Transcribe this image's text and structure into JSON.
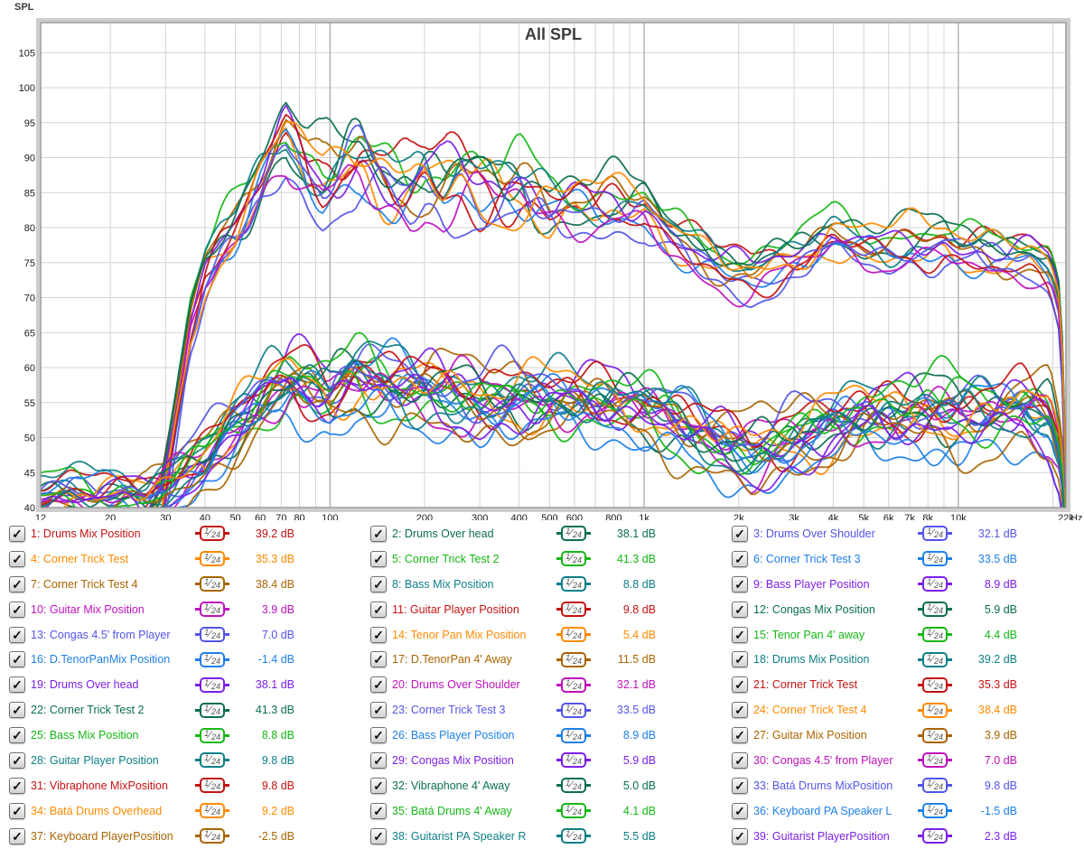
{
  "chart_data": {
    "type": "line",
    "title": "All SPL",
    "ylabel": "SPL",
    "x_unit": "Hz",
    "x_scale": "log",
    "xlim": [
      12,
      22000
    ],
    "ylim": [
      40,
      109.3
    ],
    "grid": true,
    "y_ticks": [
      105,
      100,
      95,
      90,
      85,
      80,
      75,
      70,
      65,
      60,
      55,
      50,
      45,
      40
    ],
    "x_ticks": [
      {
        "f": 12,
        "label": "12"
      },
      {
        "f": 20,
        "label": "20"
      },
      {
        "f": 30,
        "label": "30"
      },
      {
        "f": 40,
        "label": "40"
      },
      {
        "f": 50,
        "label": "50"
      },
      {
        "f": 60,
        "label": "60"
      },
      {
        "f": 70,
        "label": "70"
      },
      {
        "f": 80,
        "label": "80"
      },
      {
        "f": 100,
        "label": "100"
      },
      {
        "f": 200,
        "label": "200"
      },
      {
        "f": 300,
        "label": "300"
      },
      {
        "f": 400,
        "label": "400"
      },
      {
        "f": 500,
        "label": "500"
      },
      {
        "f": 600,
        "label": "600"
      },
      {
        "f": 800,
        "label": "800"
      },
      {
        "f": 1000,
        "label": "1k"
      },
      {
        "f": 2000,
        "label": "2k"
      },
      {
        "f": 3000,
        "label": "3k"
      },
      {
        "f": 4000,
        "label": "4k"
      },
      {
        "f": 5000,
        "label": "5k"
      },
      {
        "f": 6000,
        "label": "6k"
      },
      {
        "f": 7000,
        "label": "7k"
      },
      {
        "f": 8000,
        "label": "8k"
      },
      {
        "f": 10000,
        "label": "10k"
      },
      {
        "f": 22000,
        "label": "22k"
      }
    ],
    "minor_gridlines": [
      20,
      30,
      40,
      50,
      60,
      70,
      80,
      90,
      200,
      300,
      400,
      500,
      600,
      700,
      800,
      900,
      2000,
      3000,
      4000,
      5000,
      6000,
      7000,
      8000,
      9000,
      20000
    ],
    "major_gridlines": [
      100,
      1000,
      10000
    ],
    "palette": [
      "#C41212",
      "#0B6E50",
      "#5355E8",
      "#FF8A00",
      "#16B716",
      "#1E80E8",
      "#A96400",
      "#0E7F87",
      "#7C1FE8",
      "#BE12BE"
    ],
    "group_profiles": {
      "high": {
        "anchors": [
          [
            12,
            36
          ],
          [
            20,
            36
          ],
          [
            26,
            37
          ],
          [
            29,
            40
          ],
          [
            32,
            52
          ],
          [
            36,
            66
          ],
          [
            40,
            73
          ],
          [
            45,
            77
          ],
          [
            50,
            79
          ],
          [
            55,
            82
          ],
          [
            60,
            86
          ],
          [
            66,
            90
          ],
          [
            72,
            93
          ],
          [
            78,
            91
          ],
          [
            85,
            88.5
          ],
          [
            95,
            87
          ],
          [
            105,
            88.5
          ],
          [
            115,
            91
          ],
          [
            125,
            92
          ],
          [
            140,
            89.5
          ],
          [
            160,
            87
          ],
          [
            180,
            86.5
          ],
          [
            200,
            88
          ],
          [
            230,
            86
          ],
          [
            260,
            87
          ],
          [
            300,
            85
          ],
          [
            350,
            84
          ],
          [
            400,
            84.5
          ],
          [
            450,
            83
          ],
          [
            500,
            82
          ],
          [
            600,
            83
          ],
          [
            700,
            83
          ],
          [
            800,
            84
          ],
          [
            900,
            83.5
          ],
          [
            1000,
            84
          ],
          [
            1200,
            80
          ],
          [
            1500,
            77
          ],
          [
            1800,
            74.5
          ],
          [
            2200,
            73
          ],
          [
            2700,
            74.5
          ],
          [
            3300,
            76
          ],
          [
            4000,
            78.5
          ],
          [
            5000,
            77
          ],
          [
            6000,
            77
          ],
          [
            7000,
            78
          ],
          [
            8000,
            78
          ],
          [
            9000,
            79
          ],
          [
            10000,
            78
          ],
          [
            12000,
            77.5
          ],
          [
            14000,
            76.5
          ],
          [
            17000,
            76
          ],
          [
            19500,
            74
          ],
          [
            20800,
            70
          ],
          [
            21500,
            60
          ],
          [
            22000,
            42
          ]
        ],
        "spread_amp": [
          [
            12,
            1.0
          ],
          [
            28,
            1.2
          ],
          [
            50,
            1.8
          ],
          [
            80,
            2.4
          ],
          [
            120,
            2.8
          ],
          [
            400,
            2.8
          ],
          [
            700,
            1.9
          ],
          [
            1000,
            1.5
          ],
          [
            3000,
            1.4
          ],
          [
            10000,
            1.5
          ],
          [
            20000,
            1.3
          ],
          [
            22000,
            0.8
          ]
        ]
      },
      "low": {
        "anchors": [
          [
            12,
            40.5
          ],
          [
            15,
            41.5
          ],
          [
            18,
            40.5
          ],
          [
            22,
            41.5
          ],
          [
            26,
            40.5
          ],
          [
            30,
            42.5
          ],
          [
            35,
            45
          ],
          [
            40,
            47
          ],
          [
            48,
            51
          ],
          [
            55,
            53.5
          ],
          [
            65,
            56.5
          ],
          [
            75,
            58
          ],
          [
            85,
            57
          ],
          [
            100,
            55.5
          ],
          [
            120,
            58
          ],
          [
            150,
            57
          ],
          [
            200,
            56.5
          ],
          [
            250,
            56
          ],
          [
            300,
            55
          ],
          [
            400,
            55.5
          ],
          [
            500,
            55.5
          ],
          [
            650,
            55
          ],
          [
            800,
            54.5
          ],
          [
            1000,
            53.5
          ],
          [
            1300,
            51.5
          ],
          [
            1700,
            49
          ],
          [
            2200,
            47.5
          ],
          [
            3000,
            49.5
          ],
          [
            4000,
            51.5
          ],
          [
            5000,
            52.5
          ],
          [
            6500,
            52
          ],
          [
            8000,
            52.5
          ],
          [
            10000,
            52
          ],
          [
            13000,
            52.5
          ],
          [
            16000,
            53.5
          ],
          [
            19500,
            52
          ],
          [
            21000,
            47
          ],
          [
            21700,
            42
          ],
          [
            22000,
            34
          ]
        ],
        "spread_amp": [
          [
            12,
            1.1
          ],
          [
            30,
            1.4
          ],
          [
            50,
            1.9
          ],
          [
            90,
            2.3
          ],
          [
            300,
            2.2
          ],
          [
            1000,
            2.0
          ],
          [
            3000,
            2.0
          ],
          [
            8000,
            2.2
          ],
          [
            20000,
            2.0
          ],
          [
            22000,
            1.0
          ]
        ]
      }
    },
    "series": [
      {
        "n": 1,
        "label": "1: Drums Mix Position",
        "value_db": 39.2,
        "group": "high",
        "checked": true
      },
      {
        "n": 2,
        "label": "2: Drums Over head",
        "value_db": 38.1,
        "group": "high",
        "checked": true
      },
      {
        "n": 3,
        "label": "3: Drums Over Shoulder",
        "value_db": 32.1,
        "group": "high",
        "checked": true
      },
      {
        "n": 4,
        "label": "4: Corner Trick Test",
        "value_db": 35.3,
        "group": "high",
        "checked": true
      },
      {
        "n": 5,
        "label": "5: Corner Trick Test 2",
        "value_db": 41.3,
        "group": "high",
        "checked": true
      },
      {
        "n": 6,
        "label": "6: Corner Trick Test 3",
        "value_db": 33.5,
        "group": "high",
        "checked": true
      },
      {
        "n": 7,
        "label": "7: Corner Trick Test 4",
        "value_db": 38.4,
        "group": "high",
        "checked": true
      },
      {
        "n": 8,
        "label": "8: Bass Mix Position",
        "value_db": 8.8,
        "group": "low",
        "checked": true
      },
      {
        "n": 9,
        "label": "9: Bass Player  Position",
        "value_db": 8.9,
        "group": "low",
        "checked": true
      },
      {
        "n": 10,
        "label": "10: Guitar Mix Position",
        "value_db": 3.9,
        "group": "low",
        "checked": true
      },
      {
        "n": 11,
        "label": "11: Guitar Player Position",
        "value_db": 9.8,
        "group": "low",
        "checked": true
      },
      {
        "n": 12,
        "label": "12: Congas Mix Position",
        "value_db": 5.9,
        "group": "low",
        "checked": true,
        "hf_boost": 2
      },
      {
        "n": 13,
        "label": "13: Congas 4.5' from Player",
        "value_db": 7.0,
        "group": "low",
        "checked": true
      },
      {
        "n": 14,
        "label": "14: Tenor Pan Mix Position",
        "value_db": 5.4,
        "group": "low",
        "checked": true
      },
      {
        "n": 15,
        "label": "15: Tenor Pan 4' away",
        "value_db": 4.4,
        "group": "low",
        "checked": true,
        "hf_boost": 3
      },
      {
        "n": 16,
        "label": "16: D.TenorPanMix Position",
        "value_db": -1.4,
        "group": "low",
        "checked": true
      },
      {
        "n": 17,
        "label": "17: D.TenorPan 4' Away",
        "value_db": 11.5,
        "group": "low",
        "checked": true
      },
      {
        "n": 18,
        "label": "18: Drums Mix Position",
        "value_db": 39.2,
        "group": "high",
        "checked": true
      },
      {
        "n": 19,
        "label": "19: Drums Over head",
        "value_db": 38.1,
        "group": "high",
        "checked": true
      },
      {
        "n": 20,
        "label": "20: Drums Over Shoulder",
        "value_db": 32.1,
        "group": "high",
        "checked": true
      },
      {
        "n": 21,
        "label": "21: Corner Trick Test",
        "value_db": 35.3,
        "group": "high",
        "checked": true
      },
      {
        "n": 22,
        "label": "22: Corner Trick Test 2",
        "value_db": 41.3,
        "group": "high",
        "checked": true
      },
      {
        "n": 23,
        "label": "23: Corner Trick Test 3",
        "value_db": 33.5,
        "group": "high",
        "checked": true
      },
      {
        "n": 24,
        "label": "24: Corner Trick Test 4",
        "value_db": 38.4,
        "group": "high",
        "checked": true
      },
      {
        "n": 25,
        "label": "25: Bass Mix Position",
        "value_db": 8.8,
        "group": "low",
        "checked": true,
        "hf_boost": 3
      },
      {
        "n": 26,
        "label": "26: Bass Player  Position",
        "value_db": 8.9,
        "group": "low",
        "checked": true
      },
      {
        "n": 27,
        "label": "27: Guitar Mix Position",
        "value_db": 3.9,
        "group": "low",
        "checked": true
      },
      {
        "n": 28,
        "label": "28: Guitar Player Position",
        "value_db": 9.8,
        "group": "low",
        "checked": true
      },
      {
        "n": 29,
        "label": "29: Congas Mix Position",
        "value_db": 5.9,
        "group": "low",
        "checked": true
      },
      {
        "n": 30,
        "label": "30: Congas 4.5' from Player",
        "value_db": 7.0,
        "group": "low",
        "checked": true
      },
      {
        "n": 31,
        "label": "31: Vibraphone MixPosition",
        "value_db": 9.8,
        "group": "low",
        "checked": true
      },
      {
        "n": 32,
        "label": "32: Vibraphone 4' Away",
        "value_db": 5.0,
        "group": "low",
        "checked": true,
        "hf_boost": 2
      },
      {
        "n": 33,
        "label": "33: Batá Drums MixPosition",
        "value_db": 9.8,
        "group": "low",
        "checked": true
      },
      {
        "n": 34,
        "label": "34: Batá Drums Overhead",
        "value_db": 9.2,
        "group": "low",
        "checked": true
      },
      {
        "n": 35,
        "label": "35: Batá Drums 4' Away",
        "value_db": 4.1,
        "group": "low",
        "checked": true,
        "hf_boost": 3
      },
      {
        "n": 36,
        "label": "36: Keyboard PA Speaker L",
        "value_db": -1.5,
        "group": "low",
        "checked": true
      },
      {
        "n": 37,
        "label": "37: Keyboard PlayerPosition",
        "value_db": -2.5,
        "group": "low",
        "checked": true
      },
      {
        "n": 38,
        "label": "38: Guitarist PA Speaker R",
        "value_db": 5.5,
        "group": "low",
        "checked": true
      },
      {
        "n": 39,
        "label": "39: Guitarist PlayerPosition",
        "value_db": 2.3,
        "group": "low",
        "checked": true
      }
    ]
  },
  "legend": {
    "smoothing_label": "1/24",
    "smoothing_numerator": "1",
    "smoothing_denominator": "24",
    "value_unit": "dB",
    "check_glyph": "✓"
  }
}
